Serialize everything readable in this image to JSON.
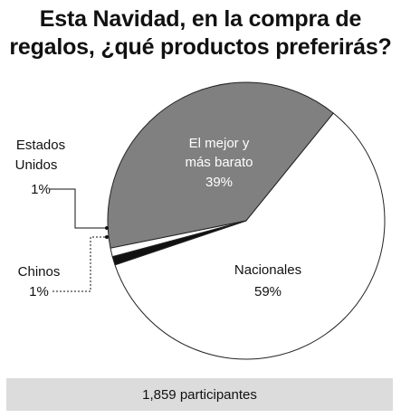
{
  "title": {
    "line1": "Esta Navidad, en la compra de",
    "line2": "regalos, ¿qué productos preferirás?"
  },
  "chart_data": {
    "type": "pie",
    "slices": [
      {
        "label_lines": [
          "El mejor y",
          "más barato"
        ],
        "pct_label": "39%",
        "value": 39,
        "color": "#808080"
      },
      {
        "label_lines": [
          "Nacionales"
        ],
        "pct_label": "59%",
        "value": 59,
        "color": "#ffffff"
      },
      {
        "label_lines": [
          "Chinos"
        ],
        "pct_label": "1%",
        "value": 1,
        "color": "#111111"
      },
      {
        "label_lines": [
          "Estados",
          "Unidos"
        ],
        "pct_label": "1%",
        "value": 1,
        "color": "#ffffff"
      }
    ]
  },
  "footer": {
    "participants": "1,859 participantes"
  }
}
